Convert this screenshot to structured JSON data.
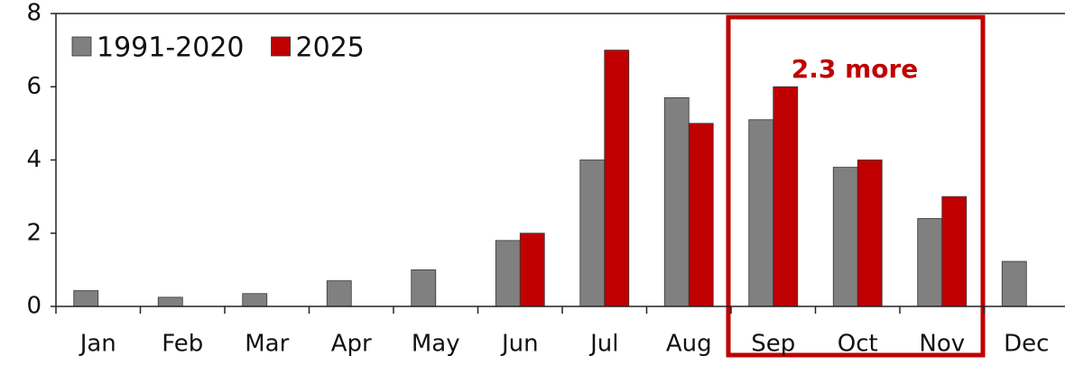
{
  "chart_data": {
    "type": "bar",
    "categories": [
      "Jan",
      "Feb",
      "Mar",
      "Apr",
      "May",
      "Jun",
      "Jul",
      "Aug",
      "Sep",
      "Oct",
      "Nov",
      "Dec"
    ],
    "series": [
      {
        "name": "1991-2020",
        "color": "#808080",
        "values": [
          0.43,
          0.25,
          0.35,
          0.7,
          1.0,
          1.8,
          4.0,
          5.7,
          5.1,
          3.8,
          2.4,
          1.23
        ]
      },
      {
        "name": "2025",
        "color": "#c00000",
        "values": [
          0,
          0,
          0,
          0,
          0,
          2,
          7,
          5,
          6,
          4,
          3,
          0
        ]
      }
    ],
    "ylim": [
      0,
      8
    ],
    "yticks": [
      0,
      2,
      4,
      6,
      8
    ],
    "grid": false,
    "legend": "top-left",
    "annotation": "2.3 more"
  }
}
